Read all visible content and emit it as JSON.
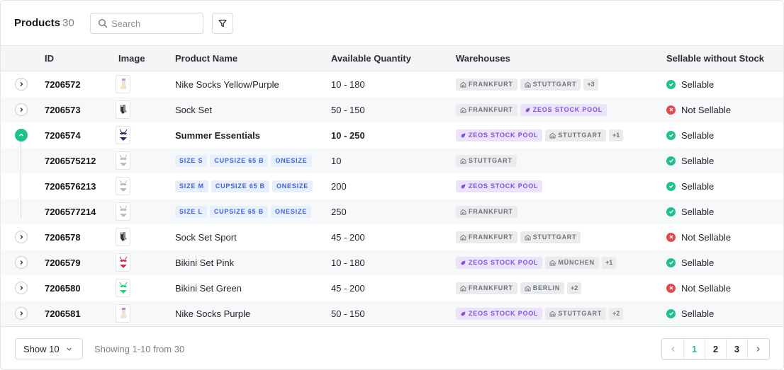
{
  "header": {
    "title": "Products",
    "count": "30",
    "search_placeholder": "Search"
  },
  "columns": [
    "ID",
    "Image",
    "Product Name",
    "Available Quantity",
    "Warehouses",
    "Sellable without Stock"
  ],
  "rows": [
    {
      "id": "7206572",
      "name": "Nike Socks Yellow/Purple",
      "qty": "10 - 180",
      "image": "sock-yellow-purple",
      "warehouses": [
        {
          "label": "FRANKFURT",
          "type": "store"
        },
        {
          "label": "STUTTGART",
          "type": "store"
        }
      ],
      "more": "+3",
      "sellable": "Sellable",
      "ok": true
    },
    {
      "id": "7206573",
      "name": "Sock Set",
      "qty": "50 - 150",
      "image": "sock-set",
      "warehouses": [
        {
          "label": "FRANKFURT",
          "type": "store"
        },
        {
          "label": "ZEOS STOCK POOL",
          "type": "pool"
        }
      ],
      "more": "",
      "sellable": "Not Sellable",
      "ok": false
    },
    {
      "id": "7206574",
      "name": "Summer Essentials",
      "qty": "10 - 250",
      "image": "bikini-navy",
      "expanded": true,
      "warehouses": [
        {
          "label": "ZEOS STOCK POOL",
          "type": "pool"
        },
        {
          "label": "STUTTGART",
          "type": "store"
        }
      ],
      "more": "+1",
      "sellable": "Sellable",
      "ok": true
    },
    {
      "id": "7206575212",
      "child": true,
      "sizes": [
        "SIZE S",
        "CUPSIZE 65 B",
        "ONESIZE"
      ],
      "qty": "10",
      "image": "bikini-grey",
      "warehouses": [
        {
          "label": "STUTTGART",
          "type": "store"
        }
      ],
      "more": "",
      "sellable": "Sellable",
      "ok": true
    },
    {
      "id": "7206576213",
      "child": true,
      "sizes": [
        "SIZE M",
        "CUPSIZE 65 B",
        "ONESIZE"
      ],
      "qty": "200",
      "image": "bikini-grey",
      "warehouses": [
        {
          "label": "ZEOS STOCK POOL",
          "type": "pool"
        }
      ],
      "more": "",
      "sellable": "Sellable",
      "ok": true
    },
    {
      "id": "7206577214",
      "child": true,
      "sizes": [
        "SIZE L",
        "CUPSIZE 65 B",
        "ONESIZE"
      ],
      "qty": "250",
      "image": "bikini-grey",
      "warehouses": [
        {
          "label": "FRANKFURT",
          "type": "store"
        }
      ],
      "more": "",
      "sellable": "Sellable",
      "ok": true
    },
    {
      "id": "7206578",
      "name": "Sock Set Sport",
      "qty": "45 - 200",
      "image": "sock-set",
      "warehouses": [
        {
          "label": "FRANKFURT",
          "type": "store"
        },
        {
          "label": "STUTTGART",
          "type": "store"
        }
      ],
      "more": "",
      "sellable": "Not Sellable",
      "ok": false
    },
    {
      "id": "7206579",
      "name": "Bikini Set Pink",
      "qty": "10 - 180",
      "image": "bikini-pink",
      "warehouses": [
        {
          "label": "ZEOS STOCK POOL",
          "type": "pool"
        },
        {
          "label": "MÜNCHEN",
          "type": "store"
        }
      ],
      "more": "+1",
      "sellable": "Sellable",
      "ok": true
    },
    {
      "id": "7206580",
      "name": "Bikini Set Green",
      "qty": "45 - 200",
      "image": "bikini-green",
      "warehouses": [
        {
          "label": "FRANKFURT",
          "type": "store"
        },
        {
          "label": "BERLIN",
          "type": "store"
        }
      ],
      "more": "+2",
      "sellable": "Not Sellable",
      "ok": false
    },
    {
      "id": "7206581",
      "name": "Nike Socks Purple",
      "qty": "50 - 150",
      "image": "sock-purple",
      "warehouses": [
        {
          "label": "ZEOS STOCK POOL",
          "type": "pool"
        },
        {
          "label": "STUTTGART",
          "type": "store"
        }
      ],
      "more": "+2",
      "sellable": "Sellable",
      "ok": true
    }
  ],
  "footer": {
    "show_label": "Show 10",
    "showing_text": "Showing 1-10 from 30",
    "pages": [
      "1",
      "2",
      "3"
    ],
    "active_page": "1"
  },
  "colors": {
    "accent": "#1fbf8f",
    "danger": "#e5484d",
    "pool": "#8152d9",
    "size_tag": "#3f64d8"
  }
}
